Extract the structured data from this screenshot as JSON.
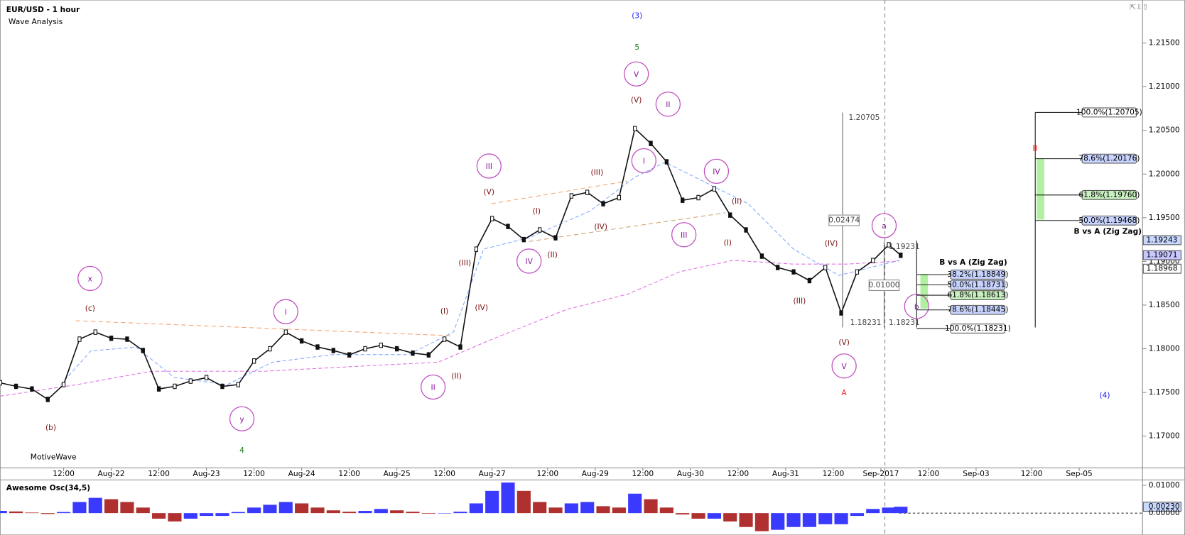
{
  "window": {
    "title": "EUR/USD - 1 hour",
    "subtitle": "Wave Analysis",
    "watermark": "MotiveWave"
  },
  "chart_data": [
    {
      "type": "line",
      "color": "#111111",
      "x": [
        0,
        4,
        8,
        12,
        16,
        20,
        24,
        28,
        32,
        36,
        40,
        44,
        48,
        52,
        56,
        60,
        64,
        68,
        72,
        76,
        80,
        84,
        88,
        92,
        96,
        100,
        104,
        108,
        112,
        116,
        120,
        124,
        128,
        132,
        136,
        140,
        144,
        148,
        152,
        156,
        160,
        164,
        168,
        172,
        176,
        180,
        184,
        188,
        192,
        196,
        200,
        204,
        208,
        212,
        216,
        220,
        224,
        227
      ],
      "values": [
        1.1761,
        1.1757,
        1.1754,
        1.1742,
        1.1759,
        1.1811,
        1.1819,
        1.1812,
        1.1811,
        1.1798,
        1.1754,
        1.1757,
        1.1763,
        1.1767,
        1.1757,
        1.1759,
        1.1786,
        1.18,
        1.1819,
        1.1809,
        1.1802,
        1.1798,
        1.1793,
        1.18,
        1.1804,
        1.18,
        1.1795,
        1.1793,
        1.1811,
        1.1802,
        1.1914,
        1.1949,
        1.194,
        1.1925,
        1.1936,
        1.1927,
        1.1975,
        1.1979,
        1.1966,
        1.1973,
        1.2052,
        1.2035,
        1.2014,
        1.197,
        1.1973,
        1.1983,
        1.1953,
        1.1936,
        1.1906,
        1.1893,
        1.1888,
        1.1878,
        1.1893,
        1.1841,
        1.1888,
        1.1901,
        1.1919,
        1.1907
      ],
      "xlim": [
        0,
        287
      ],
      "xticks": [
        {
          "value": 16,
          "label": "12:00"
        },
        {
          "value": 28,
          "label": "Aug-22"
        },
        {
          "value": 40,
          "label": "12:00"
        },
        {
          "value": 52,
          "label": "Aug-23"
        },
        {
          "value": 64,
          "label": "12:00"
        },
        {
          "value": 76,
          "label": "Aug-24"
        },
        {
          "value": 88,
          "label": "12:00"
        },
        {
          "value": 100,
          "label": "Aug-25"
        },
        {
          "value": 112,
          "label": "12:00"
        },
        {
          "value": 124,
          "label": "Aug-27"
        },
        {
          "value": 138,
          "label": "12:00"
        },
        {
          "value": 150,
          "label": "Aug-29"
        },
        {
          "value": 162,
          "label": "12:00"
        },
        {
          "value": 174,
          "label": "Aug-30"
        },
        {
          "value": 186,
          "label": "12:00"
        },
        {
          "value": 198,
          "label": "Aug-31"
        },
        {
          "value": 210,
          "label": "12:00"
        },
        {
          "value": 222,
          "label": "Sep-2017"
        },
        {
          "value": 234,
          "label": "12:00"
        },
        {
          "value": 246,
          "label": "Sep-03"
        },
        {
          "value": 260,
          "label": "12:00"
        },
        {
          "value": 272,
          "label": "Sep-05"
        }
      ],
      "ylim": [
        1.16637,
        1.21992
      ],
      "yticks": [
        {
          "value": 1.17,
          "label": "1.17000"
        },
        {
          "value": 1.175,
          "label": "1.17500"
        },
        {
          "value": 1.18,
          "label": "1.18000"
        },
        {
          "value": 1.185,
          "label": "1.18500"
        },
        {
          "value": 1.19,
          "label": "1.19000"
        },
        {
          "value": 1.195,
          "label": "1.19500"
        },
        {
          "value": 1.2,
          "label": "1.20000"
        },
        {
          "value": 1.205,
          "label": "1.20500"
        },
        {
          "value": 1.21,
          "label": "1.21000"
        },
        {
          "value": 1.215,
          "label": "1.21500"
        }
      ],
      "price_labels": [
        1.19243,
        1.19071,
        1.18968
      ],
      "annotations": [
        {
          "text": "(3)",
          "color": "#1a1aff",
          "circled": false
        },
        {
          "text": "5",
          "color": "#1a7a1a",
          "circled": false
        },
        {
          "text": "V",
          "color": "#8b1a9b",
          "circled": true
        },
        {
          "text": "(V)",
          "color": "#7a1010",
          "circled": false
        },
        {
          "text": "II",
          "color": "#8b1a9b",
          "circled": true
        },
        {
          "text": "I",
          "color": "#8b1a9b",
          "circled": true
        },
        {
          "text": "IV",
          "color": "#8b1a9b",
          "circled": true
        },
        {
          "text": "III",
          "color": "#8b1a9b",
          "circled": true
        },
        {
          "text": "(V)",
          "color": "#7a1010",
          "circled": false
        },
        {
          "text": "(III)",
          "color": "#7a1010",
          "circled": false
        },
        {
          "text": "(I)",
          "color": "#7a1010",
          "circled": false
        },
        {
          "text": "(IV)",
          "color": "#7a1010",
          "circled": false
        },
        {
          "text": "(II)",
          "color": "#7a1010",
          "circled": false
        },
        {
          "text": "IV",
          "color": "#8b1a9b",
          "circled": true
        },
        {
          "text": "III",
          "color": "#8b1a9b",
          "circled": true
        },
        {
          "text": "(II)",
          "color": "#7a1010",
          "circled": false
        },
        {
          "text": "(I)",
          "color": "#7a1010",
          "circled": false
        },
        {
          "text": "(III)",
          "color": "#7a1010",
          "circled": false
        },
        {
          "text": "(IV)",
          "color": "#7a1010",
          "circled": false
        },
        {
          "text": "(I)",
          "color": "#7a1010",
          "circled": false
        },
        {
          "text": "(II)",
          "color": "#7a1010",
          "circled": false
        },
        {
          "text": "II",
          "color": "#8b1a9b",
          "circled": true
        },
        {
          "text": "I",
          "color": "#8b1a9b",
          "circled": true
        },
        {
          "text": "x",
          "color": "#8b1a9b",
          "circled": true
        },
        {
          "text": "(c)",
          "color": "#7a1010",
          "circled": false
        },
        {
          "text": "(b)",
          "color": "#7a1010",
          "circled": false
        },
        {
          "text": "y",
          "color": "#8b1a9b",
          "circled": true
        },
        {
          "text": "4",
          "color": "#1a7a1a",
          "circled": false
        },
        {
          "text": "(IV)",
          "color": "#7a1010",
          "circled": false
        },
        {
          "text": "(III)",
          "color": "#7a1010",
          "circled": false
        },
        {
          "text": "(V)",
          "color": "#7a1010",
          "circled": false
        },
        {
          "text": "V",
          "color": "#8b1a9b",
          "circled": true
        },
        {
          "text": "A",
          "color": "#ff1a1a",
          "circled": false
        },
        {
          "text": "a",
          "color": "#8b1a9b",
          "circled": true
        },
        {
          "text": "b",
          "color": "#8b1a9b",
          "circled": true
        },
        {
          "text": "B",
          "color": "#ff1a1a",
          "circled": false
        },
        {
          "text": "(4)",
          "color": "#1a1aff",
          "circled": false
        }
      ],
      "measure_labels": [
        "1.20705",
        "0.02474",
        "1.18231",
        "0.01000",
        "1.19231",
        "1.18231"
      ],
      "fib_groups": [
        {
          "title": "B vs A (Zig Zag)",
          "levels": [
            {
              "value": 1.18849,
              "label": "38.2%(1.18849)",
              "color": "#c8d4ff"
            },
            {
              "value": 1.18731,
              "label": "50.0%(1.18731)",
              "color": "#c8d4ff"
            },
            {
              "value": 1.18613,
              "label": "61.8%(1.18613)",
              "color": "#c8f0c0"
            },
            {
              "value": 1.18445,
              "label": "78.6%(1.18445)",
              "color": "#c8d4ff"
            },
            {
              "value": 1.18231,
              "label": "100.0%(1.18231)",
              "color": "#ffffff"
            }
          ]
        },
        {
          "title": "B vs A (Zig Zag)",
          "levels": [
            {
              "value": 1.20705,
              "label": "100.0%(1.20705)",
              "color": "#ffffff"
            },
            {
              "value": 1.20176,
              "label": "78.6%(1.20176)",
              "color": "#c8d4ff"
            },
            {
              "value": 1.1976,
              "label": "61.8%(1.19760)",
              "color": "#c8f0c0"
            },
            {
              "value": 1.19468,
              "label": "50.0%(1.19468)",
              "color": "#c8d4ff"
            }
          ]
        }
      ]
    },
    {
      "type": "bar",
      "title": "Awesome Osc(34,5)",
      "up_color": "#3a3aff",
      "down_color": "#b03030",
      "x": [
        0,
        4,
        8,
        12,
        16,
        20,
        24,
        28,
        32,
        36,
        40,
        44,
        48,
        52,
        56,
        60,
        64,
        68,
        72,
        76,
        80,
        84,
        88,
        92,
        96,
        100,
        104,
        108,
        112,
        116,
        120,
        124,
        128,
        132,
        136,
        140,
        144,
        148,
        152,
        156,
        160,
        164,
        168,
        172,
        176,
        180,
        184,
        188,
        192,
        196,
        200,
        204,
        208,
        212,
        216,
        220,
        224,
        227
      ],
      "values": [
        0.0008,
        0.0006,
        0.0002,
        -0.0003,
        0.0004,
        0.004,
        0.0055,
        0.005,
        0.004,
        0.002,
        -0.002,
        -0.003,
        -0.002,
        -0.001,
        -0.001,
        0.0004,
        0.002,
        0.003,
        0.004,
        0.0035,
        0.002,
        0.001,
        0.0005,
        0.0008,
        0.0015,
        0.001,
        0.0005,
        -0.0002,
        -0.0001,
        0.0005,
        0.0035,
        0.008,
        0.011,
        0.008,
        0.004,
        0.002,
        0.0035,
        0.004,
        0.0025,
        0.002,
        0.007,
        0.005,
        0.002,
        -0.0005,
        -0.002,
        -0.002,
        -0.003,
        -0.005,
        -0.0065,
        -0.006,
        -0.005,
        -0.005,
        -0.004,
        -0.004,
        -0.001,
        0.0015,
        0.002,
        0.0023
      ],
      "xlim": [
        0,
        287
      ],
      "ylim": [
        -0.0076,
        0.0114
      ],
      "yticks": [
        {
          "value": 0.01,
          "label": "0.01000"
        },
        {
          "value": 0.0023,
          "label": "0.00230"
        },
        {
          "value": 0,
          "label": "0.00000"
        }
      ]
    }
  ]
}
